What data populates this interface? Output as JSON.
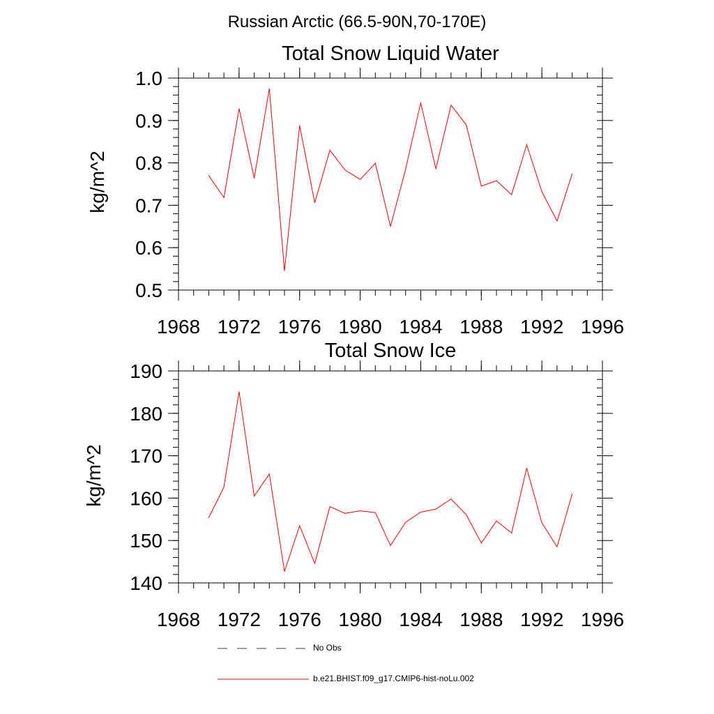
{
  "figure": {
    "suptitle": "Russian Arctic (66.5-90N,70-170E)"
  },
  "legend": {
    "items": [
      {
        "label": "No Obs",
        "color": "#333366",
        "style": "dashed"
      },
      {
        "label": "b.e21.BHIST.f09_g17.CMIP6-hist-noLu.002",
        "color": "#ff0000",
        "style": "solid"
      }
    ]
  },
  "chart_data": [
    {
      "type": "line",
      "title": "Total Snow Liquid Water",
      "xlabel": "",
      "ylabel": "kg/m^2",
      "xlim": [
        1968,
        1996
      ],
      "ylim": [
        0.5,
        1.0
      ],
      "x_ticks": [
        1968,
        1972,
        1976,
        1980,
        1984,
        1988,
        1992,
        1996
      ],
      "y_ticks": [
        0.5,
        0.6,
        0.7,
        0.8,
        0.9,
        1.0
      ],
      "y_tick_labels": [
        "0.5",
        "0.6",
        "0.7",
        "0.8",
        "0.9",
        "1.0"
      ],
      "y_minor_step": 0.02,
      "x_minor_step": 1,
      "series": [
        {
          "name": "b.e21.BHIST.f09_g17.CMIP6-hist-noLu.002",
          "color": "#ff0000",
          "x": [
            1970,
            1971,
            1972,
            1973,
            1974,
            1975,
            1976,
            1977,
            1978,
            1979,
            1980,
            1981,
            1982,
            1983,
            1984,
            1985,
            1986,
            1987,
            1988,
            1989,
            1990,
            1991,
            1992,
            1993,
            1994
          ],
          "y": [
            0.77,
            0.718,
            0.928,
            0.764,
            0.975,
            0.545,
            0.888,
            0.706,
            0.83,
            0.783,
            0.761,
            0.799,
            0.65,
            0.785,
            0.942,
            0.786,
            0.936,
            0.89,
            0.745,
            0.758,
            0.725,
            0.843,
            0.732,
            0.663,
            0.774
          ]
        }
      ]
    },
    {
      "type": "line",
      "title": "Total Snow Ice",
      "xlabel": "",
      "ylabel": "kg/m^2",
      "xlim": [
        1968,
        1996
      ],
      "ylim": [
        140,
        190
      ],
      "x_ticks": [
        1968,
        1972,
        1976,
        1980,
        1984,
        1988,
        1992,
        1996
      ],
      "y_ticks": [
        140,
        150,
        160,
        170,
        180,
        190
      ],
      "y_tick_labels": [
        "140",
        "150",
        "160",
        "170",
        "180",
        "190"
      ],
      "y_minor_step": 2,
      "x_minor_step": 1,
      "series": [
        {
          "name": "b.e21.BHIST.f09_g17.CMIP6-hist-noLu.002",
          "color": "#ff0000",
          "x": [
            1970,
            1971,
            1972,
            1973,
            1974,
            1975,
            1976,
            1977,
            1978,
            1979,
            1980,
            1981,
            1982,
            1983,
            1984,
            1985,
            1986,
            1987,
            1988,
            1989,
            1990,
            1991,
            1992,
            1993,
            1994
          ],
          "y": [
            155.4,
            162.6,
            185.1,
            160.5,
            165.7,
            142.7,
            153.5,
            144.6,
            158.0,
            156.4,
            157.0,
            156.6,
            148.8,
            154.3,
            156.7,
            157.4,
            159.8,
            156.1,
            149.4,
            154.6,
            151.8,
            167.1,
            154.2,
            148.5,
            161.0
          ]
        }
      ]
    }
  ]
}
